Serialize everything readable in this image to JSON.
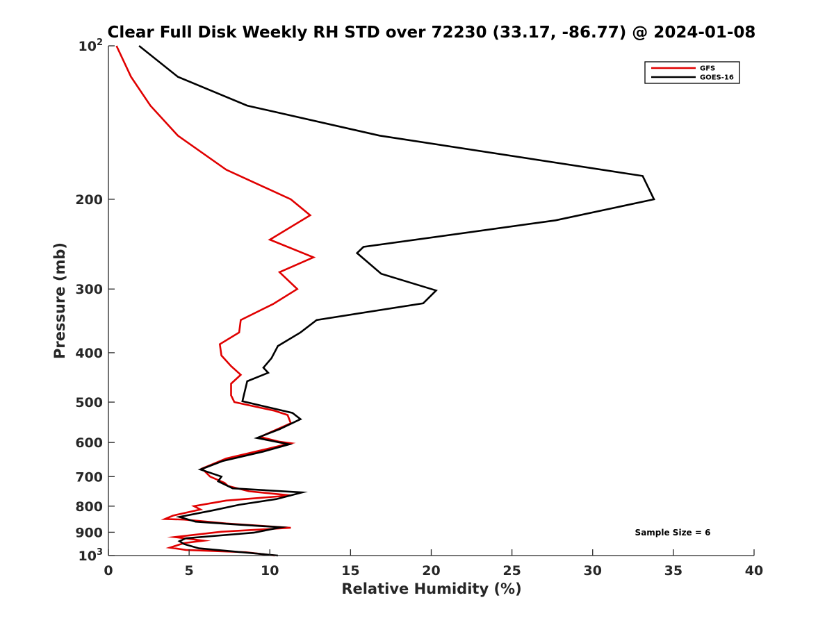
{
  "chart_data": {
    "type": "line",
    "title": "Clear Full Disk Weekly RH STD over 72230 (33.17, -86.77) @ 2024-01-08",
    "xlabel": "Relative Humidity (%)",
    "ylabel": "Pressure (mb)",
    "xlim": [
      0,
      40
    ],
    "ylim": [
      100,
      1000
    ],
    "yscale": "log",
    "y_reversed": true,
    "grid": false,
    "x_ticks": [
      {
        "value": 0,
        "label": "0"
      },
      {
        "value": 5,
        "label": "5"
      },
      {
        "value": 10,
        "label": "10"
      },
      {
        "value": 15,
        "label": "15"
      },
      {
        "value": 20,
        "label": "20"
      },
      {
        "value": 25,
        "label": "25"
      },
      {
        "value": 30,
        "label": "30"
      },
      {
        "value": 35,
        "label": "35"
      },
      {
        "value": 40,
        "label": "40"
      }
    ],
    "y_ticks": [
      {
        "value": 100,
        "base": "10",
        "exp": "2"
      },
      {
        "value": 200,
        "label": "200"
      },
      {
        "value": 300,
        "label": "300"
      },
      {
        "value": 400,
        "label": "400"
      },
      {
        "value": 500,
        "label": "500"
      },
      {
        "value": 600,
        "label": "600"
      },
      {
        "value": 700,
        "label": "700"
      },
      {
        "value": 800,
        "label": "800"
      },
      {
        "value": 900,
        "label": "900"
      },
      {
        "value": 1000,
        "base": "10",
        "exp": "3"
      }
    ],
    "legend_position": "top-right",
    "annotation": "Sample Size = 6",
    "series": [
      {
        "name": "GFS",
        "color": "#e00000",
        "points": [
          [
            0.5,
            100
          ],
          [
            1.4,
            115
          ],
          [
            2.6,
            131
          ],
          [
            4.3,
            150
          ],
          [
            7.3,
            175
          ],
          [
            11.3,
            200
          ],
          [
            12.5,
            215
          ],
          [
            10.0,
            240
          ],
          [
            12.7,
            260
          ],
          [
            10.6,
            278
          ],
          [
            11.7,
            300
          ],
          [
            10.2,
            321
          ],
          [
            8.2,
            345
          ],
          [
            8.1,
            365
          ],
          [
            6.9,
            385
          ],
          [
            7.0,
            405
          ],
          [
            7.6,
            425
          ],
          [
            8.2,
            442
          ],
          [
            7.6,
            460
          ],
          [
            7.6,
            485
          ],
          [
            7.8,
            500
          ],
          [
            10.3,
            520
          ],
          [
            11.1,
            530
          ],
          [
            11.3,
            550
          ],
          [
            10.2,
            570
          ],
          [
            9.4,
            585
          ],
          [
            10.6,
            598
          ],
          [
            11.3,
            602
          ],
          [
            9.8,
            618
          ],
          [
            7.3,
            645
          ],
          [
            5.8,
            675
          ],
          [
            6.3,
            700
          ],
          [
            7.2,
            720
          ],
          [
            7.4,
            730
          ],
          [
            8.7,
            748
          ],
          [
            11.3,
            762
          ],
          [
            7.3,
            780
          ],
          [
            5.3,
            800
          ],
          [
            5.7,
            812
          ],
          [
            4.0,
            835
          ],
          [
            3.5,
            848
          ],
          [
            4.7,
            850
          ],
          [
            7.3,
            865
          ],
          [
            11.3,
            882
          ],
          [
            7.0,
            898
          ],
          [
            4.1,
            920
          ],
          [
            5.9,
            935
          ],
          [
            4.7,
            945
          ],
          [
            3.8,
            965
          ],
          [
            4.8,
            975
          ],
          [
            8.5,
            985
          ],
          [
            10.3,
            1000
          ]
        ]
      },
      {
        "name": "GOES-16",
        "color": "#000000",
        "points": [
          [
            1.9,
            100
          ],
          [
            4.3,
            115
          ],
          [
            8.6,
            131
          ],
          [
            16.8,
            150
          ],
          [
            33.1,
            180
          ],
          [
            33.8,
            200
          ],
          [
            27.7,
            220
          ],
          [
            15.8,
            248
          ],
          [
            15.4,
            255
          ],
          [
            16.9,
            280
          ],
          [
            20.3,
            302
          ],
          [
            19.5,
            320
          ],
          [
            12.9,
            345
          ],
          [
            11.9,
            365
          ],
          [
            10.5,
            388
          ],
          [
            10.1,
            410
          ],
          [
            9.6,
            428
          ],
          [
            9.9,
            438
          ],
          [
            8.6,
            455
          ],
          [
            8.3,
            498
          ],
          [
            11.4,
            525
          ],
          [
            11.9,
            540
          ],
          [
            10.6,
            565
          ],
          [
            9.2,
            588
          ],
          [
            11.2,
            605
          ],
          [
            9.6,
            625
          ],
          [
            7.1,
            652
          ],
          [
            5.7,
            678
          ],
          [
            7.0,
            700
          ],
          [
            6.8,
            715
          ],
          [
            7.7,
            738
          ],
          [
            12.0,
            752
          ],
          [
            10.4,
            775
          ],
          [
            8.1,
            795
          ],
          [
            6.5,
            815
          ],
          [
            4.4,
            840
          ],
          [
            5.4,
            858
          ],
          [
            8.1,
            870
          ],
          [
            10.7,
            880
          ],
          [
            9.0,
            902
          ],
          [
            4.8,
            925
          ],
          [
            4.4,
            937
          ],
          [
            4.7,
            950
          ],
          [
            5.6,
            968
          ],
          [
            10.5,
            1000
          ]
        ]
      }
    ]
  }
}
